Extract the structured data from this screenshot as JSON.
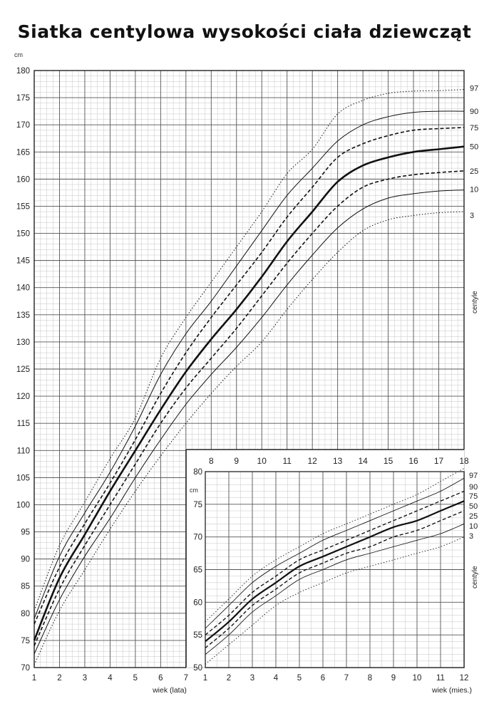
{
  "title": "Siatka centylowa wysokości ciała dziewcząt",
  "chart_data": [
    {
      "type": "line",
      "name": "main",
      "unit_label": "cm",
      "xlabel": "wiek (lata)",
      "side_label": "centyle",
      "xlim": [
        1,
        18
      ],
      "ylim": [
        70,
        180
      ],
      "x_ticks": [
        1,
        2,
        3,
        4,
        5,
        6,
        7,
        8,
        9,
        10,
        11,
        12,
        13,
        14,
        15,
        16,
        17,
        18
      ],
      "y_ticks": [
        70,
        75,
        80,
        85,
        90,
        95,
        100,
        105,
        110,
        115,
        120,
        125,
        130,
        135,
        140,
        145,
        150,
        155,
        160,
        165,
        170,
        175,
        180
      ],
      "grid": true,
      "x": [
        1,
        2,
        3,
        4,
        5,
        6,
        7,
        8,
        9,
        10,
        11,
        12,
        13,
        14,
        15,
        16,
        17,
        18
      ],
      "series": [
        {
          "name": "97",
          "style": "dotted",
          "values": [
            80.5,
            92.5,
            100.5,
            108.5,
            116.0,
            127.0,
            134.5,
            141.0,
            147.5,
            154.0,
            161.0,
            165.5,
            172.0,
            174.5,
            175.8,
            176.2,
            176.3,
            176.5
          ]
        },
        {
          "name": "90",
          "style": "solid-thin",
          "values": [
            79.0,
            90.5,
            98.5,
            106.0,
            114.5,
            124.0,
            131.5,
            137.5,
            144.0,
            150.5,
            157.0,
            162.0,
            167.0,
            170.0,
            171.5,
            172.3,
            172.5,
            172.5
          ]
        },
        {
          "name": "75",
          "style": "dashed",
          "values": [
            78.0,
            88.5,
            96.5,
            104.0,
            112.0,
            120.5,
            128.0,
            134.5,
            140.5,
            146.5,
            153.0,
            158.5,
            164.0,
            166.5,
            168.0,
            169.0,
            169.3,
            169.5
          ]
        },
        {
          "name": "50",
          "style": "solid-bold",
          "values": [
            75.0,
            86.5,
            94.5,
            102.5,
            110.0,
            117.5,
            124.5,
            130.5,
            136.0,
            142.0,
            148.5,
            154.0,
            159.5,
            162.5,
            164.0,
            165.0,
            165.5,
            166.0
          ]
        },
        {
          "name": "25",
          "style": "dashed",
          "values": [
            74.0,
            84.5,
            92.5,
            100.0,
            107.5,
            115.0,
            121.5,
            127.0,
            132.5,
            138.5,
            144.5,
            150.0,
            155.0,
            158.5,
            160.0,
            160.8,
            161.2,
            161.5
          ]
        },
        {
          "name": "10",
          "style": "solid-thin",
          "values": [
            72.5,
            82.5,
            90.5,
            97.5,
            105.0,
            112.0,
            118.5,
            124.0,
            129.0,
            134.5,
            140.5,
            146.0,
            151.0,
            154.5,
            156.5,
            157.3,
            157.8,
            158.0
          ]
        },
        {
          "name": "3",
          "style": "dotted",
          "values": [
            70.5,
            80.5,
            88.0,
            95.5,
            102.5,
            109.0,
            115.0,
            120.5,
            125.5,
            130.0,
            136.0,
            141.5,
            146.5,
            150.5,
            152.5,
            153.3,
            153.8,
            154.0
          ]
        }
      ]
    },
    {
      "type": "line",
      "name": "inset",
      "unit_label": "cm",
      "xlabel": "wiek (mies.)",
      "side_label": "centyle",
      "xlim": [
        1,
        12
      ],
      "ylim": [
        50,
        80
      ],
      "x_ticks": [
        1,
        2,
        3,
        4,
        5,
        6,
        7,
        8,
        9,
        10,
        11,
        12
      ],
      "y_ticks": [
        50,
        55,
        60,
        65,
        70,
        75,
        80
      ],
      "grid": true,
      "x": [
        1,
        2,
        3,
        4,
        5,
        6,
        7,
        8,
        9,
        10,
        11,
        12
      ],
      "series": [
        {
          "name": "97",
          "style": "dotted",
          "values": [
            57.0,
            60.5,
            64.0,
            66.5,
            68.5,
            70.5,
            72.0,
            73.5,
            75.0,
            76.5,
            78.5,
            80.5
          ]
        },
        {
          "name": "90",
          "style": "solid-thin",
          "values": [
            56.0,
            59.5,
            63.0,
            65.5,
            67.5,
            69.5,
            71.0,
            72.5,
            74.0,
            75.5,
            77.0,
            79.0
          ]
        },
        {
          "name": "75",
          "style": "dashed",
          "values": [
            55.0,
            58.0,
            61.5,
            64.0,
            66.5,
            68.0,
            69.5,
            71.0,
            72.5,
            74.0,
            75.5,
            77.0
          ]
        },
        {
          "name": "50",
          "style": "solid-bold",
          "values": [
            54.0,
            57.0,
            60.5,
            63.0,
            65.5,
            67.0,
            68.5,
            70.0,
            71.5,
            72.5,
            74.0,
            75.5
          ]
        },
        {
          "name": "25",
          "style": "dashed",
          "values": [
            53.0,
            56.0,
            59.5,
            62.0,
            64.5,
            66.0,
            67.5,
            68.5,
            70.0,
            71.0,
            72.5,
            74.0
          ]
        },
        {
          "name": "10",
          "style": "solid-thin",
          "values": [
            52.0,
            55.0,
            58.5,
            61.0,
            63.5,
            65.0,
            66.5,
            67.5,
            68.5,
            69.5,
            70.5,
            72.0
          ]
        },
        {
          "name": "3",
          "style": "dotted",
          "values": [
            50.5,
            53.5,
            56.5,
            59.5,
            61.5,
            63.0,
            64.5,
            65.5,
            66.5,
            67.5,
            68.5,
            70.0
          ]
        }
      ]
    }
  ]
}
